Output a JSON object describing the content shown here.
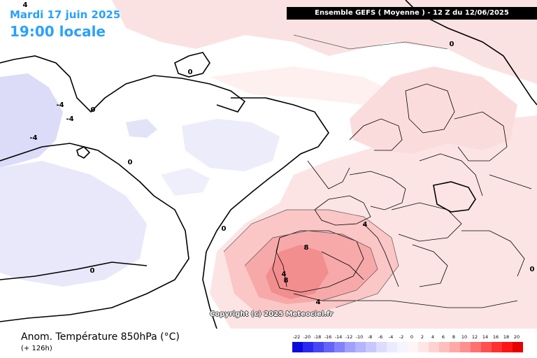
{
  "header": {
    "date": "Mardi 17 juin 2025",
    "time": "19:00 locale",
    "model": "Ensemble GEFS  ( Moyenne )  -  12 Z du 12/06/2025"
  },
  "map": {
    "contour_labels": [
      "4",
      "0",
      "-4",
      "-4",
      "-4",
      "0",
      "0",
      "0",
      "0",
      "0",
      "4",
      "4",
      "8",
      "8",
      "4",
      "0"
    ],
    "copyright": "Copyright (c) 2025 Meteociel.fr"
  },
  "footer": {
    "parameter": "Anom. Température 850hPa (°C)",
    "lead_time": "(+ 126h)"
  },
  "legend": {
    "ticks": [
      "-22",
      "-20",
      "-18",
      "-16",
      "-14",
      "-12",
      "-10",
      "-8",
      "-6",
      "-4",
      "-2",
      "0",
      "2",
      "4",
      "6",
      "8",
      "10",
      "12",
      "14",
      "16",
      "18",
      "20"
    ],
    "colors": [
      "#0a0adc",
      "#2828f0",
      "#4646f5",
      "#6464fa",
      "#8282ff",
      "#a0a0ff",
      "#b4b4ff",
      "#c8c8ff",
      "#dcdcff",
      "#ebebff",
      "#f5f5ff",
      "#fff5f5",
      "#ffe6e6",
      "#ffd2d2",
      "#ffbebe",
      "#ffa8a8",
      "#ff9090",
      "#ff7070",
      "#ff5050",
      "#ff3030",
      "#ff1414",
      "#e60000"
    ]
  }
}
